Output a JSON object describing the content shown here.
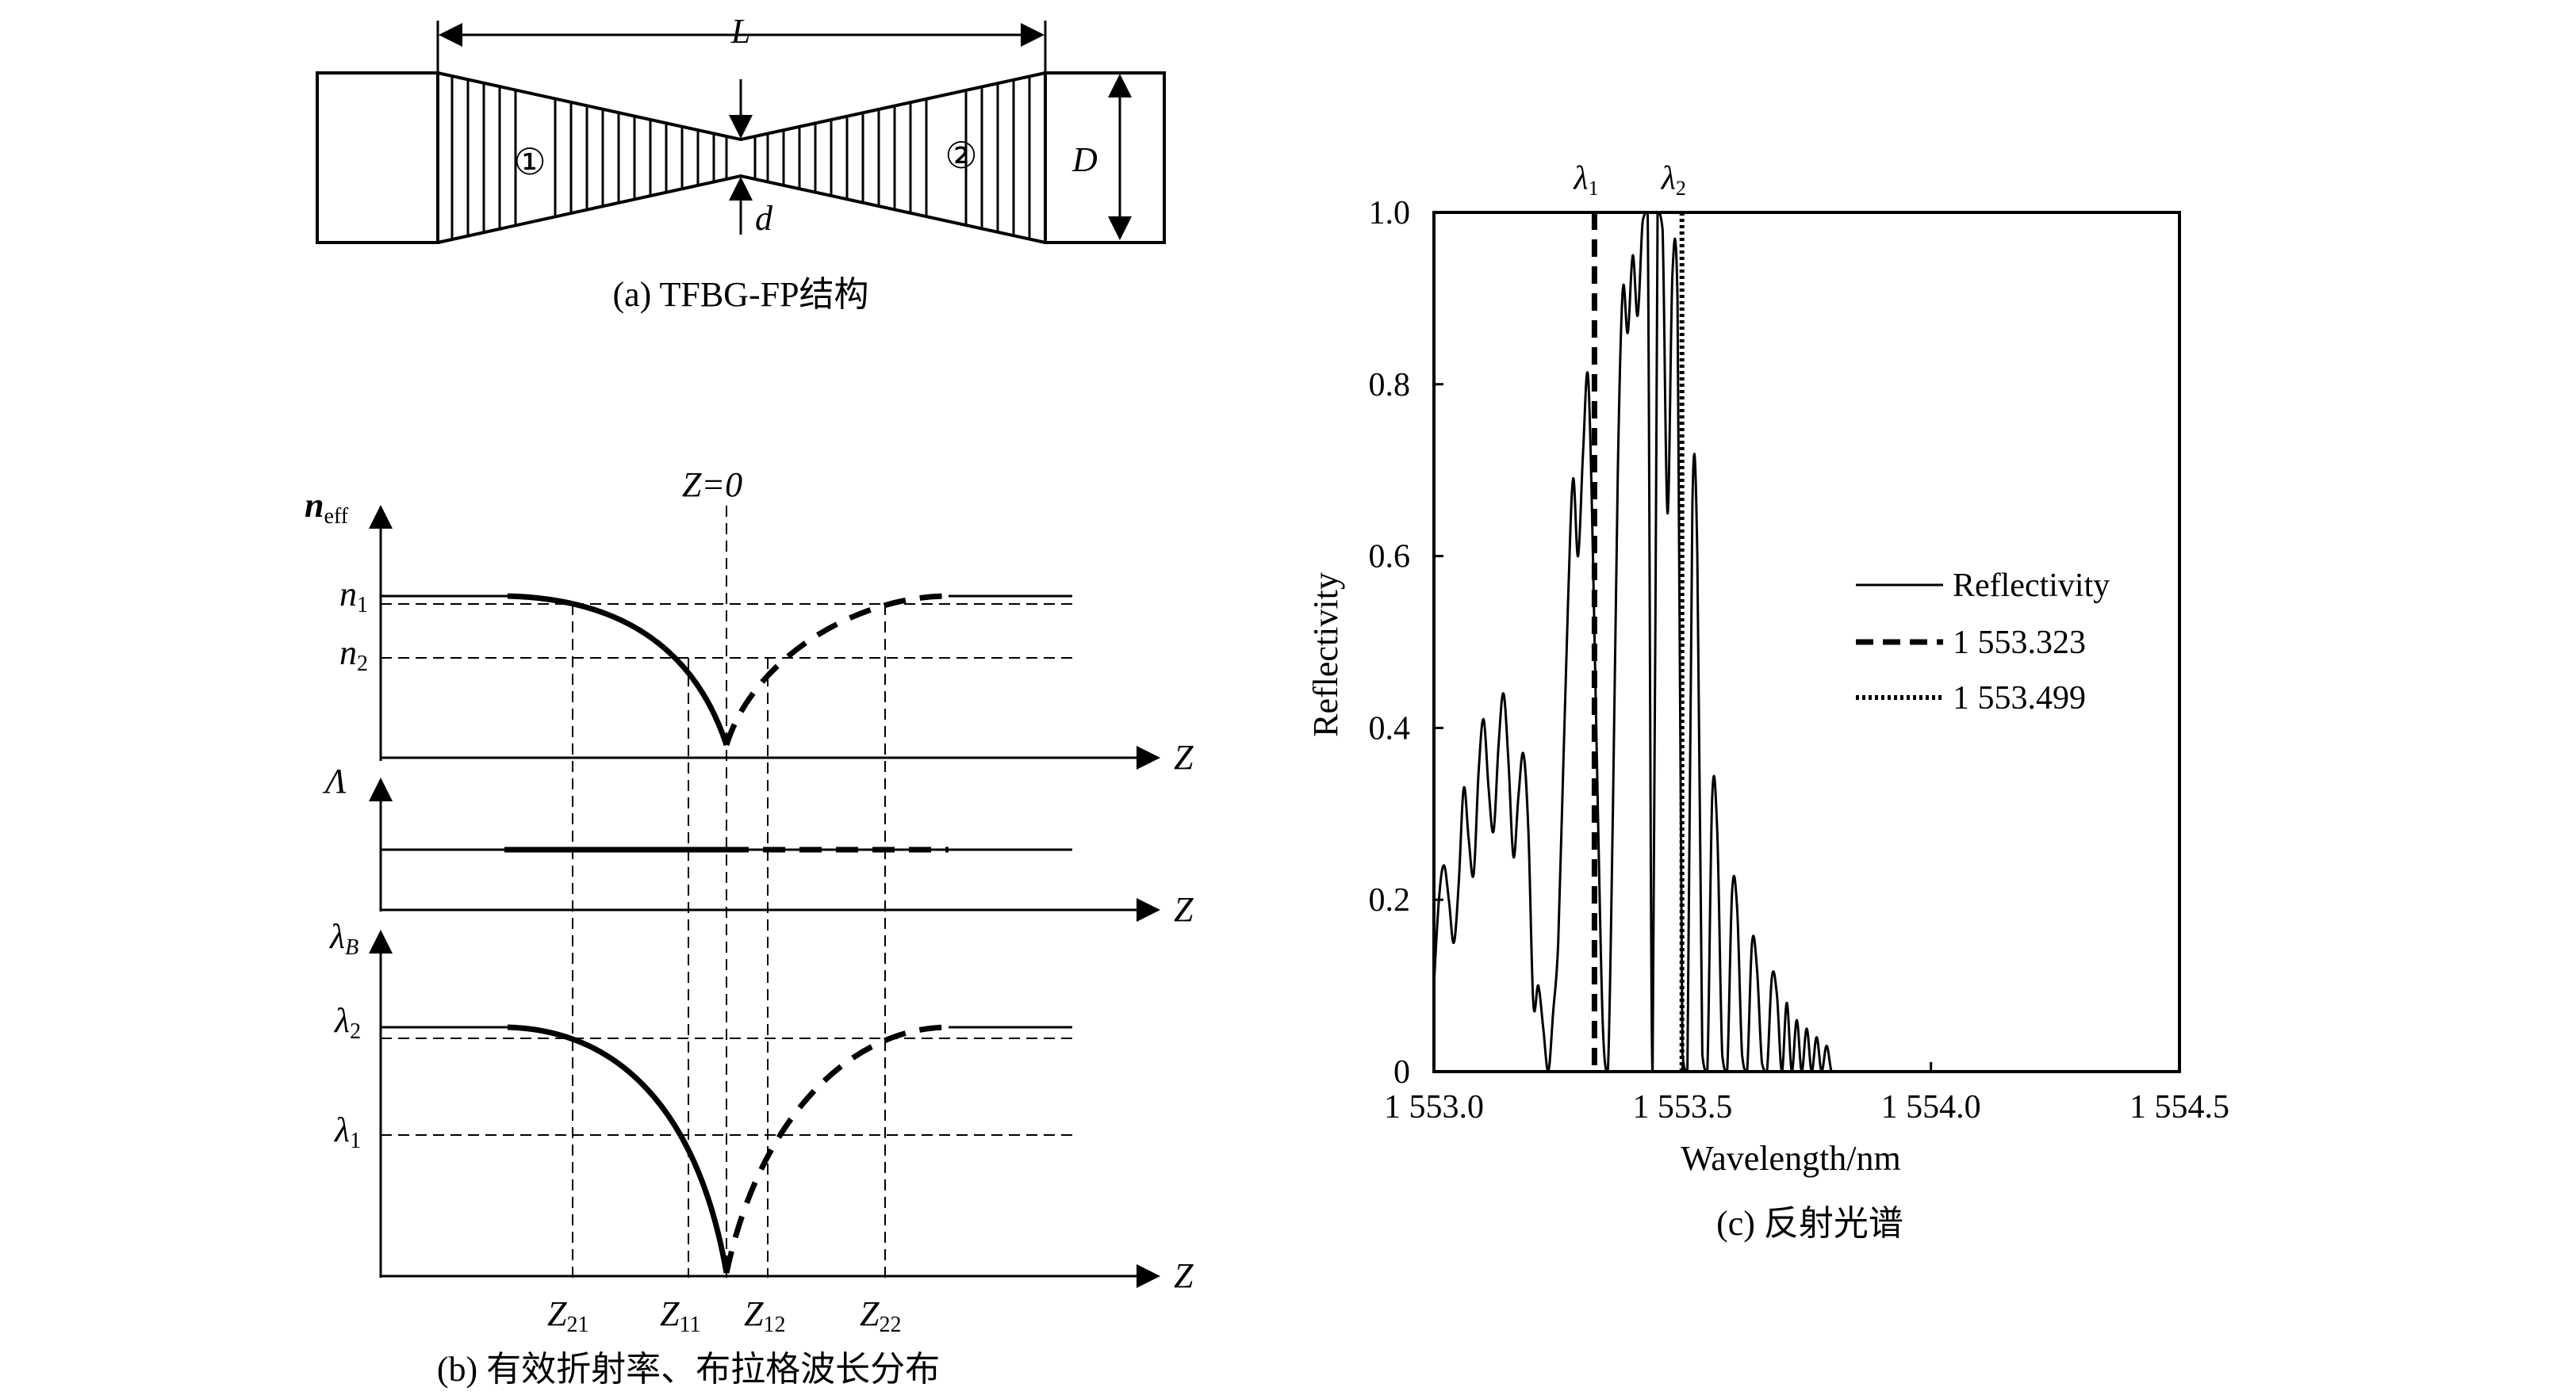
{
  "panel_a": {
    "dimension_L": "L",
    "dimension_D": "D",
    "dimension_d": "d",
    "region_1": "①",
    "region_2": "②",
    "caption": "(a) TFBG-FP结构"
  },
  "panel_b": {
    "z0_label": "Z=0",
    "neff_label": {
      "main": "n",
      "sub": "eff"
    },
    "n1_label": {
      "main": "n",
      "sub": "1"
    },
    "n2_label": {
      "main": "n",
      "sub": "2"
    },
    "z_axis_label": "Z",
    "lambda_axis_label": "Λ",
    "lambdaB_label": {
      "main": "λ",
      "sub": "B"
    },
    "lambda2_label": {
      "main": "λ",
      "sub": "2"
    },
    "lambda1_label": {
      "main": "λ",
      "sub": "1"
    },
    "z21_label": {
      "main": "Z",
      "sub": "21"
    },
    "z11_label": {
      "main": "Z",
      "sub": "11"
    },
    "z12_label": {
      "main": "Z",
      "sub": "12"
    },
    "z22_label": {
      "main": "Z",
      "sub": "22"
    },
    "caption": "(b) 有效折射率、布拉格波长分布"
  },
  "chart_data": {
    "type": "line",
    "xlabel": "Wavelength/nm",
    "ylabel": "Reflectivity",
    "xlim": [
      1553.0,
      1554.5
    ],
    "ylim": [
      0,
      1.0
    ],
    "xticks": [
      1553.0,
      1553.5,
      1554.0,
      1554.5
    ],
    "xtick_labels": [
      "1 553.0",
      "1 553.5",
      "1 554.0",
      "1 554.5"
    ],
    "yticks": [
      0,
      0.2,
      0.4,
      0.6,
      0.8,
      1.0
    ],
    "ytick_labels": [
      "0",
      "0.2",
      "0.4",
      "0.6",
      "0.8",
      "1.0"
    ],
    "vlines": [
      {
        "x": 1553.323,
        "style": "dashed",
        "label": {
          "main": "λ",
          "sub": "1"
        }
      },
      {
        "x": 1553.499,
        "style": "dotted",
        "label": {
          "main": "λ",
          "sub": "2"
        }
      }
    ],
    "legend": {
      "position": "right",
      "entries": [
        "Reflectivity",
        "1 553.323",
        "1 553.499"
      ]
    },
    "series": [
      {
        "name": "Reflectivity",
        "x": [
          1553.0,
          1553.01,
          1553.02,
          1553.03,
          1553.04,
          1553.05,
          1553.06,
          1553.07,
          1553.08,
          1553.09,
          1553.1,
          1553.11,
          1553.12,
          1553.13,
          1553.14,
          1553.15,
          1553.16,
          1553.17,
          1553.18,
          1553.19,
          1553.2,
          1553.21,
          1553.22,
          1553.23,
          1553.24,
          1553.25,
          1553.26,
          1553.27,
          1553.28,
          1553.29,
          1553.3,
          1553.31,
          1553.32,
          1553.33,
          1553.34,
          1553.35,
          1553.36,
          1553.37,
          1553.38,
          1553.39,
          1553.4,
          1553.41,
          1553.42,
          1553.43,
          1553.44,
          1553.45,
          1553.46,
          1553.47,
          1553.48,
          1553.49,
          1553.5,
          1553.51,
          1553.52,
          1553.53,
          1553.54,
          1553.55,
          1553.56,
          1553.57,
          1553.58,
          1553.59,
          1553.6,
          1553.61,
          1553.62,
          1553.63,
          1553.64,
          1553.65,
          1553.66,
          1553.67,
          1553.68,
          1553.69,
          1553.7,
          1553.71,
          1553.72,
          1553.73,
          1553.74,
          1553.75,
          1553.76,
          1553.77,
          1553.78,
          1553.79,
          1553.8,
          1553.81,
          1553.82,
          1553.83,
          1553.84,
          1553.85,
          1553.86,
          1553.87,
          1553.88,
          1553.89,
          1553.9,
          1553.91,
          1553.92,
          1553.93,
          1553.94,
          1553.95,
          1553.96,
          1553.97,
          1553.98,
          1553.99
        ],
        "y": [
          0.1,
          0.2,
          0.24,
          0.2,
          0.15,
          0.22,
          0.33,
          0.27,
          0.23,
          0.35,
          0.41,
          0.33,
          0.28,
          0.38,
          0.44,
          0.36,
          0.25,
          0.32,
          0.37,
          0.28,
          0.08,
          0.1,
          0.05,
          0.0,
          0.07,
          0.15,
          0.35,
          0.55,
          0.69,
          0.6,
          0.72,
          0.81,
          0.6,
          0.3,
          0.05,
          0.0,
          0.3,
          0.7,
          0.91,
          0.86,
          0.95,
          0.88,
          0.99,
          1.0,
          0.0,
          1.0,
          0.98,
          0.65,
          0.93,
          0.9,
          0.02,
          0.0,
          0.66,
          0.6,
          0.02,
          0.0,
          0.32,
          0.28,
          0.02,
          0.0,
          0.21,
          0.19,
          0.02,
          0.0,
          0.15,
          0.12,
          0.01,
          0.0,
          0.11,
          0.09,
          0.0,
          0.08,
          0.0,
          0.06,
          0.0,
          0.05,
          0.0,
          0.04,
          0.0,
          0.03,
          0.0,
          0.0,
          0.0,
          0.0,
          0.0,
          0.0,
          0.0,
          0.0,
          0.0,
          0.0,
          0.0,
          0.0,
          0.0,
          0.0,
          0.0,
          0.0,
          0.0,
          0.0,
          0.0,
          0.0
        ]
      }
    ],
    "caption": "(c) 反射光谱"
  }
}
